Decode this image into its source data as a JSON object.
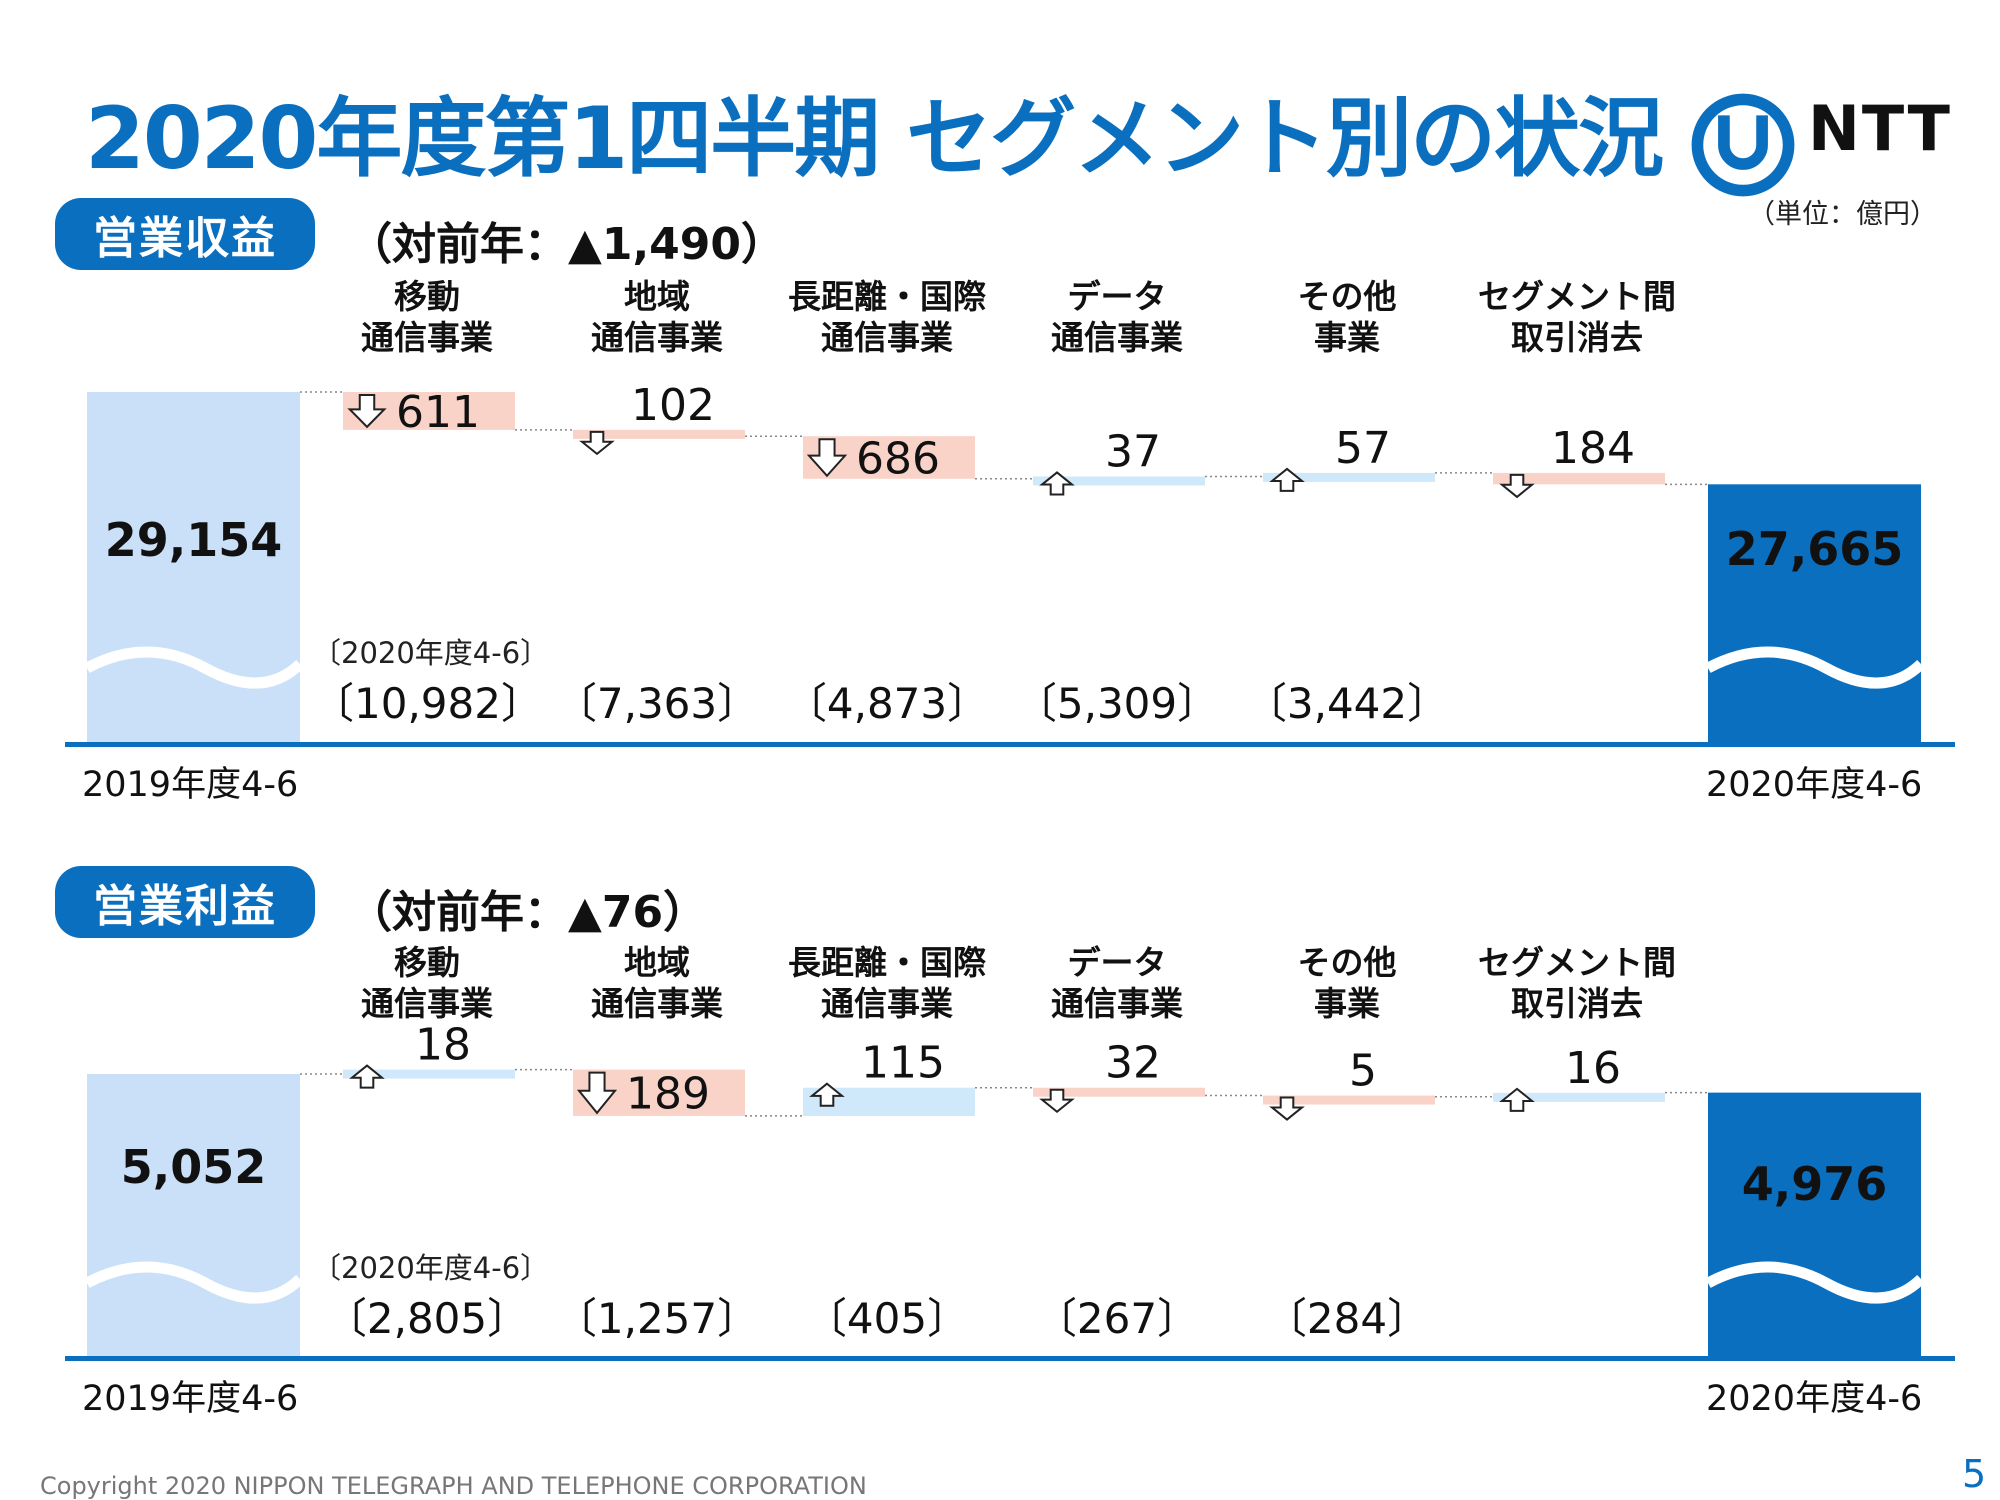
{
  "title": "2020年度第1四半期 セグメント別の状況",
  "logo_text": "NTT",
  "unit": "（単位：億円）",
  "segments": [
    "移動\n通信事業",
    "地域\n通信事業",
    "長距離・国際\n通信事業",
    "データ\n通信事業",
    "その他\n事業",
    "セグメント間\n取引消去"
  ],
  "revenue": {
    "label": "営業収益",
    "yoy": "（対前年：▲1,490）",
    "prev_note": "〔2020年度4-6〕",
    "period_start": "2019年度4-6",
    "period_end": "2020年度4-6",
    "prev_values": [
      "〔10,982〕",
      "〔7,363〕",
      "〔4,873〕",
      "〔5,309〕",
      "〔3,442〕"
    ]
  },
  "profit": {
    "label": "営業利益",
    "yoy": "（対前年：▲76）",
    "prev_note": "〔2020年度4-6〕",
    "period_start": "2019年度4-6",
    "period_end": "2020年度4-6",
    "prev_values": [
      "〔2,805〕",
      "〔1,257〕",
      "〔405〕",
      "〔267〕",
      "〔284〕"
    ]
  },
  "chart_data": [
    {
      "type": "waterfall",
      "title": "営業収益",
      "start": {
        "label": "2019年度4-6",
        "value": 29154,
        "display": "29,154"
      },
      "end": {
        "label": "2020年度4-6",
        "value": 27665,
        "display": "27,665"
      },
      "steps": [
        {
          "name": "移動通信事業",
          "change": -611,
          "display": "611"
        },
        {
          "name": "地域通信事業",
          "change": -102,
          "display": "102"
        },
        {
          "name": "長距離・国際通信事業",
          "change": -686,
          "display": "686"
        },
        {
          "name": "データ通信事業",
          "change": 37,
          "display": "37"
        },
        {
          "name": "その他事業",
          "change": 57,
          "display": "57"
        },
        {
          "name": "セグメント間取引消去",
          "change": -184,
          "display": "184"
        }
      ]
    },
    {
      "type": "waterfall",
      "title": "営業利益",
      "start": {
        "label": "2019年度4-6",
        "value": 5052,
        "display": "5,052"
      },
      "end": {
        "label": "2020年度4-6",
        "value": 4976,
        "display": "4,976"
      },
      "steps": [
        {
          "name": "移動通信事業",
          "change": 18,
          "display": "18"
        },
        {
          "name": "地域通信事業",
          "change": -189,
          "display": "189"
        },
        {
          "name": "長距離・国際通信事業",
          "change": 115,
          "display": "115"
        },
        {
          "name": "データ通信事業",
          "change": -32,
          "display": "32"
        },
        {
          "name": "その他事業",
          "change": -5,
          "display": "5"
        },
        {
          "name": "セグメント間取引消去",
          "change": 16,
          "display": "16"
        }
      ]
    }
  ],
  "colors": {
    "accent": "#0b6fbf",
    "start_bar": "#c9e0f8",
    "end_bar": "#0b6fbf",
    "increase": "#cfe8fa",
    "decrease": "#f9d2c8"
  },
  "copyright": "Copyright 2020 NIPPON TELEGRAPH AND TELEPHONE CORPORATION",
  "page_number": "5"
}
